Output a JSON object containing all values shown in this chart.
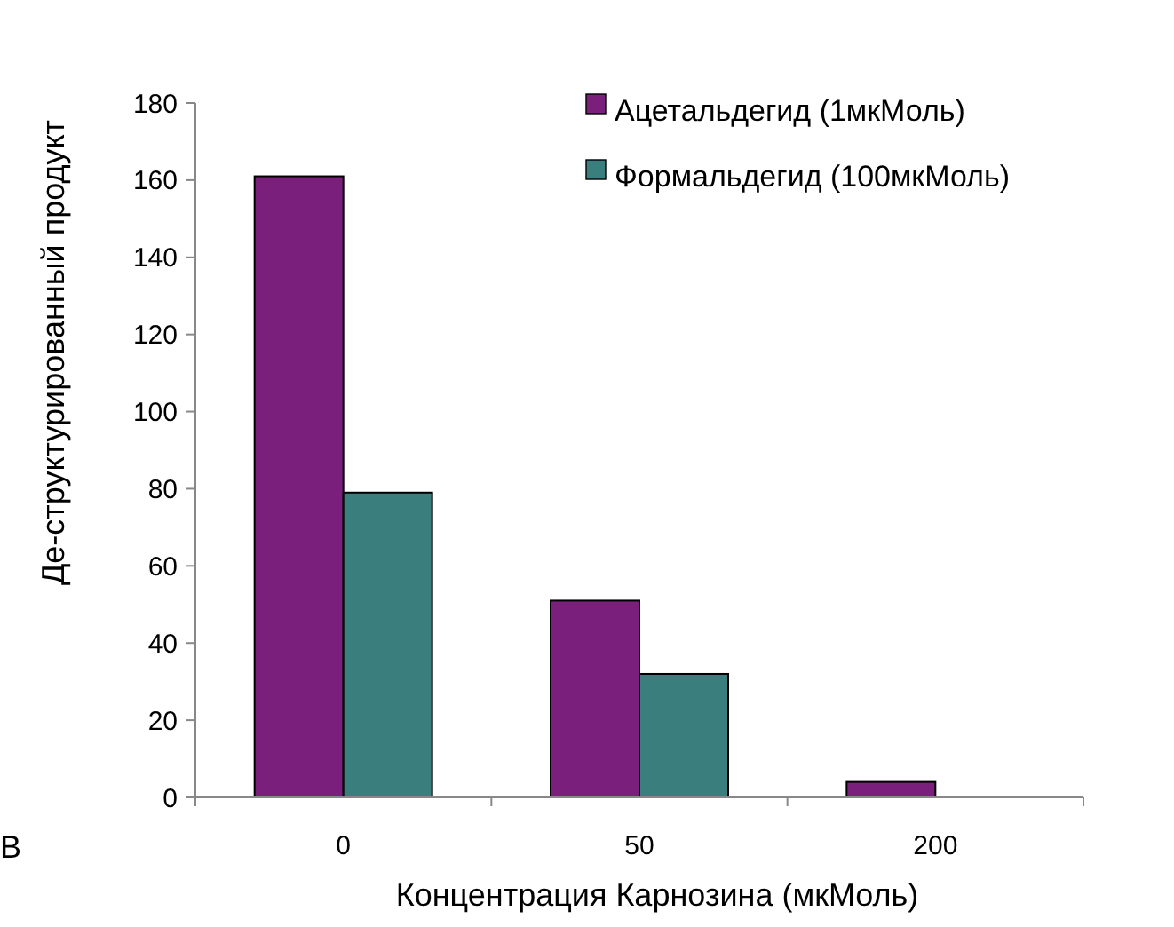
{
  "chart_data": {
    "type": "bar",
    "xlabel": "Концентрация Карнозина (мкМоль)",
    "ylabel": "Де-структурированный продукт",
    "categories": [
      "0",
      "50",
      "200"
    ],
    "series": [
      {
        "name": "Ацетальдегид (1мкМоль)",
        "color": "#7b1f7d",
        "values": [
          161,
          51,
          4
        ]
      },
      {
        "name": "Формальдегид (100мкМоль)",
        "color": "#3a7f7d",
        "values": [
          79,
          32,
          null
        ]
      }
    ],
    "ylim": [
      0,
      180
    ],
    "yticks": [
      0,
      20,
      40,
      60,
      80,
      100,
      120,
      140,
      160,
      180
    ],
    "grid": false,
    "legend": "top right",
    "annotations": [
      "В"
    ]
  }
}
